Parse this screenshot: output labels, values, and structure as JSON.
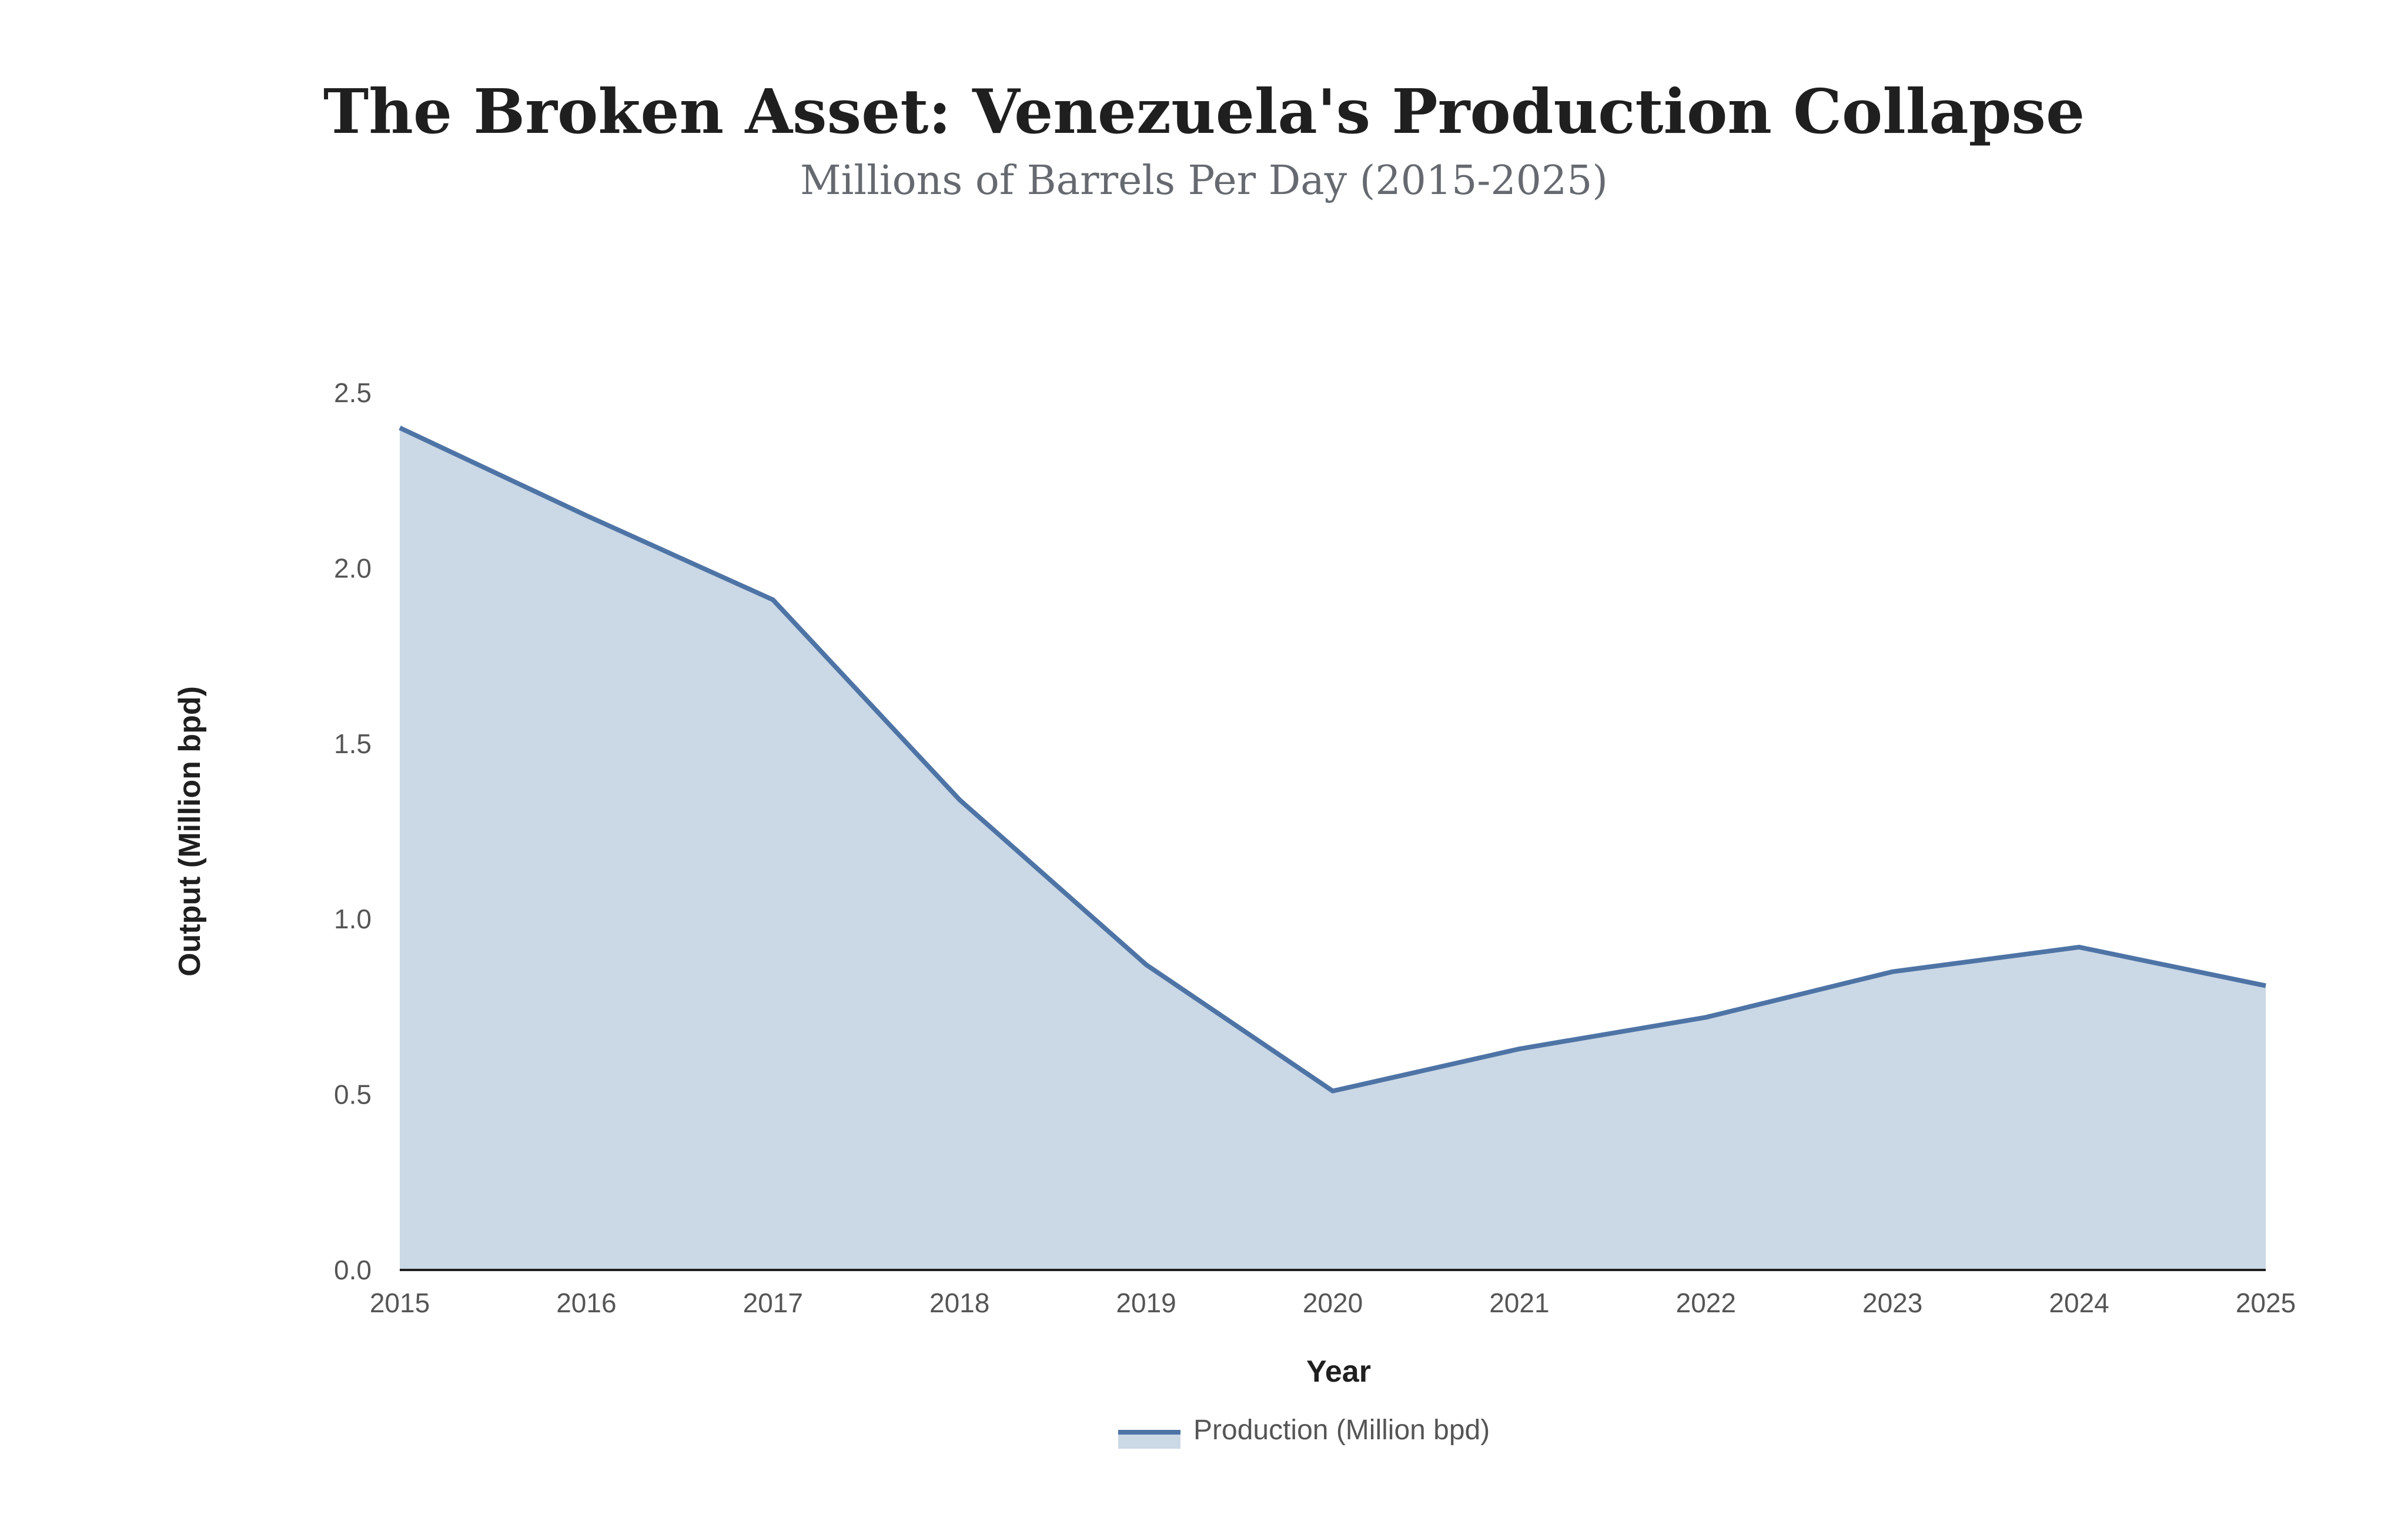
{
  "chart_data": {
    "type": "area",
    "title": "The Broken Asset: Venezuela's Production Collapse",
    "subtitle": "Millions of Barrels Per Day (2015-2025)",
    "xlabel": "Year",
    "ylabel": "Output (Million bpd)",
    "x": [
      "2015",
      "2016",
      "2017",
      "2018",
      "2019",
      "2020",
      "2021",
      "2022",
      "2023",
      "2024",
      "2025"
    ],
    "y_ticks": [
      "0.0",
      "0.5",
      "1.0",
      "1.5",
      "2.0",
      "2.5"
    ],
    "ylim": [
      0,
      2.5
    ],
    "grid": false,
    "legend_position": "bottom-center",
    "series": [
      {
        "name": "Production (Million bpd)",
        "values": [
          2.4,
          2.15,
          1.91,
          1.34,
          0.87,
          0.51,
          0.63,
          0.72,
          0.85,
          0.92,
          0.81
        ],
        "line_color": "#4e74a6",
        "fill_color": "#cbd8e5"
      }
    ],
    "axis_color": "#1f1f1f"
  }
}
